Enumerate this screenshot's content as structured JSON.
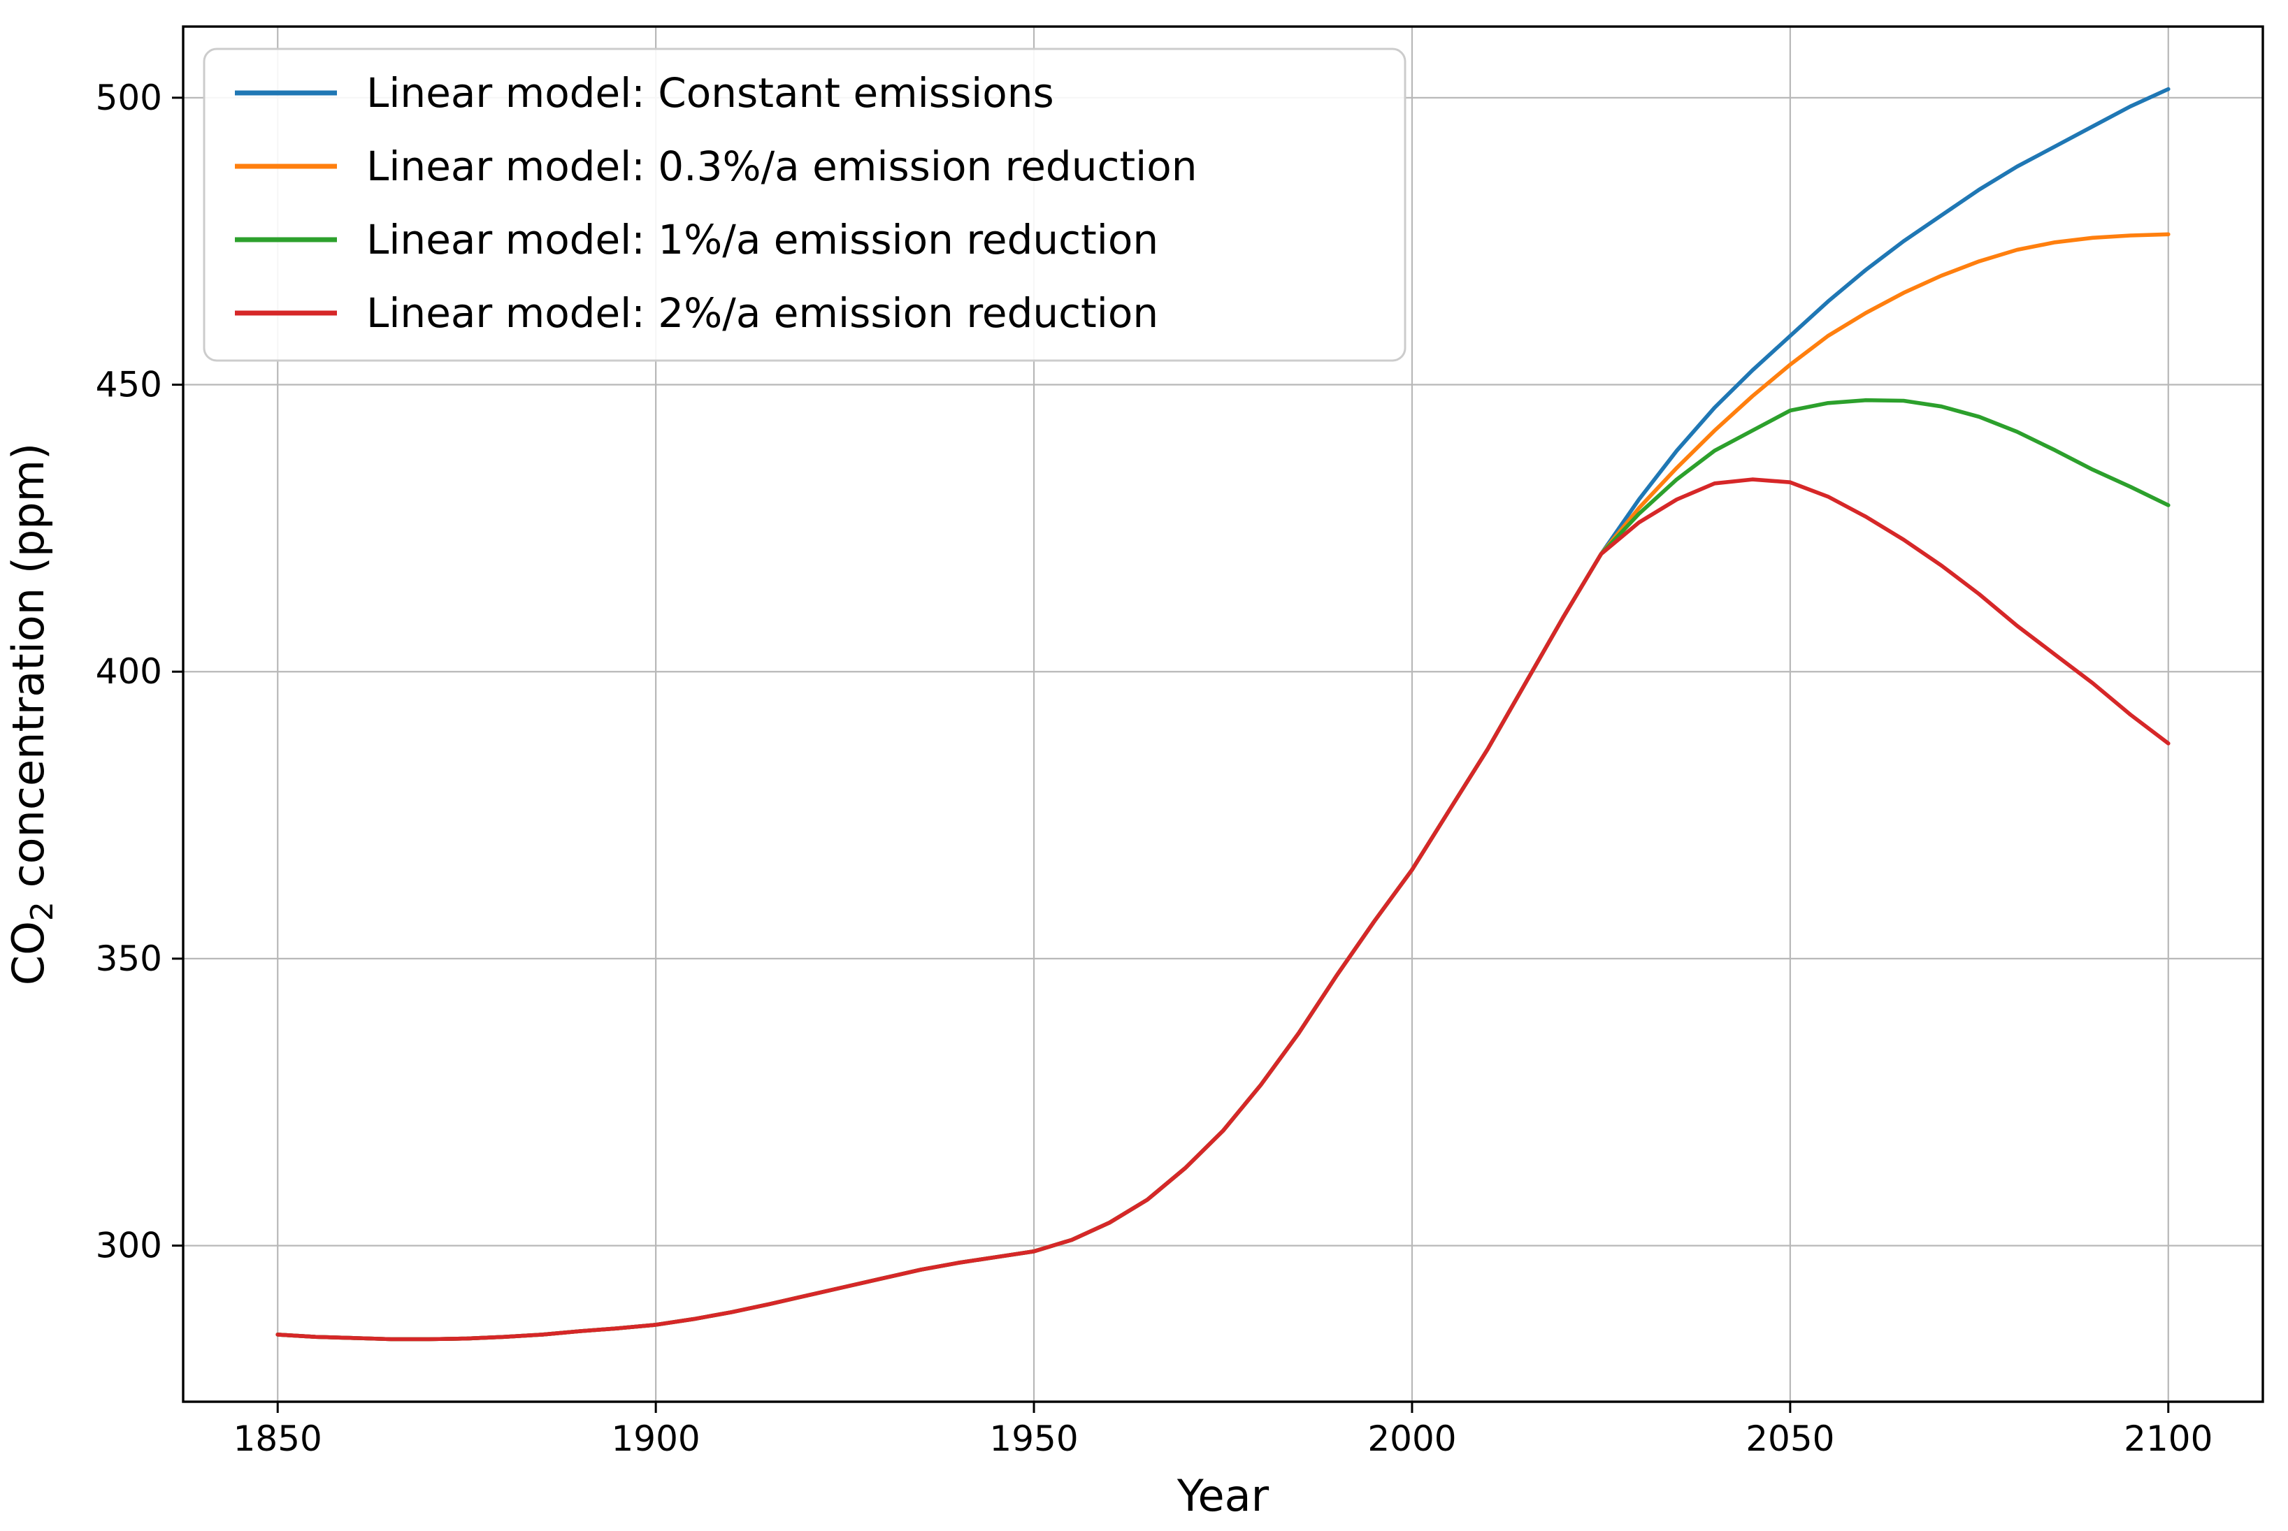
{
  "chart_data": {
    "type": "line",
    "title": "",
    "xlabel": "Year",
    "ylabel": "CO2 concentration (ppm)",
    "ylabel_parts": {
      "prefix": "CO",
      "subscript": "2",
      "suffix": " concentration (ppm)"
    },
    "xlim": [
      1837.5,
      2112.5
    ],
    "ylim": [
      272.8,
      512.4
    ],
    "xticks": [
      1850,
      1900,
      1950,
      2000,
      2050,
      2100
    ],
    "yticks": [
      300,
      350,
      400,
      450,
      500
    ],
    "grid": true,
    "legend_position": "upper left",
    "x": [
      1850,
      1855,
      1860,
      1865,
      1870,
      1875,
      1880,
      1885,
      1890,
      1895,
      1900,
      1905,
      1910,
      1915,
      1920,
      1925,
      1930,
      1935,
      1940,
      1945,
      1950,
      1955,
      1960,
      1965,
      1970,
      1975,
      1980,
      1985,
      1990,
      1995,
      2000,
      2005,
      2010,
      2015,
      2020,
      2025,
      2030,
      2035,
      2040,
      2045,
      2050,
      2055,
      2060,
      2065,
      2070,
      2075,
      2080,
      2085,
      2090,
      2095,
      2100
    ],
    "series": [
      {
        "name": "Linear model: Constant emissions",
        "color": "#1f77b4",
        "values": [
          284.5,
          284.1,
          283.9,
          283.7,
          283.7,
          283.8,
          284.1,
          284.5,
          285.1,
          285.6,
          286.2,
          287.2,
          288.4,
          289.8,
          291.3,
          292.8,
          294.3,
          295.8,
          297.0,
          298.0,
          299.0,
          301.0,
          304.0,
          308.0,
          313.5,
          320.0,
          328.0,
          337.0,
          347.0,
          356.5,
          365.5,
          376.0,
          386.5,
          398.0,
          409.5,
          420.5,
          430.0,
          438.5,
          446.0,
          452.5,
          458.5,
          464.5,
          470.0,
          475.0,
          479.5,
          484.0,
          488.0,
          491.5,
          495.0,
          498.5,
          501.5
        ]
      },
      {
        "name": "Linear model: 0.3%/a emission reduction",
        "color": "#ff7f0e",
        "values": [
          284.5,
          284.1,
          283.9,
          283.7,
          283.7,
          283.8,
          284.1,
          284.5,
          285.1,
          285.6,
          286.2,
          287.2,
          288.4,
          289.8,
          291.3,
          292.8,
          294.3,
          295.8,
          297.0,
          298.0,
          299.0,
          301.0,
          304.0,
          308.0,
          313.5,
          320.0,
          328.0,
          337.0,
          347.0,
          356.5,
          365.5,
          376.0,
          386.5,
          398.0,
          409.5,
          420.5,
          428.5,
          435.5,
          442.0,
          448.0,
          453.5,
          458.5,
          462.5,
          466.0,
          469.0,
          471.5,
          473.5,
          474.8,
          475.6,
          476.0,
          476.2
        ]
      },
      {
        "name": "Linear model: 1%/a emission reduction",
        "color": "#2ca02c",
        "values": [
          284.5,
          284.1,
          283.9,
          283.7,
          283.7,
          283.8,
          284.1,
          284.5,
          285.1,
          285.6,
          286.2,
          287.2,
          288.4,
          289.8,
          291.3,
          292.8,
          294.3,
          295.8,
          297.0,
          298.0,
          299.0,
          301.0,
          304.0,
          308.0,
          313.5,
          320.0,
          328.0,
          337.0,
          347.0,
          356.5,
          365.5,
          376.0,
          386.5,
          398.0,
          409.5,
          420.5,
          427.5,
          433.5,
          438.5,
          442.0,
          445.5,
          446.8,
          447.3,
          447.2,
          446.2,
          444.4,
          441.8,
          438.6,
          435.2,
          432.2,
          429.0
        ]
      },
      {
        "name": "Linear model: 2%/a emission reduction",
        "color": "#d62728",
        "values": [
          284.5,
          284.1,
          283.9,
          283.7,
          283.7,
          283.8,
          284.1,
          284.5,
          285.1,
          285.6,
          286.2,
          287.2,
          288.4,
          289.8,
          291.3,
          292.8,
          294.3,
          295.8,
          297.0,
          298.0,
          299.0,
          301.0,
          304.0,
          308.0,
          313.5,
          320.0,
          328.0,
          337.0,
          347.0,
          356.5,
          365.5,
          376.0,
          386.5,
          398.0,
          409.5,
          420.5,
          426.0,
          430.0,
          432.8,
          433.5,
          433.0,
          430.5,
          427.0,
          423.0,
          418.5,
          413.5,
          408.0,
          403.0,
          398.0,
          392.5,
          387.5
        ]
      }
    ],
    "colors": {
      "grid": "#b8b8b8",
      "spine": "#000000",
      "text": "#000000",
      "legend_border": "#cccccc",
      "background": "#ffffff"
    }
  }
}
